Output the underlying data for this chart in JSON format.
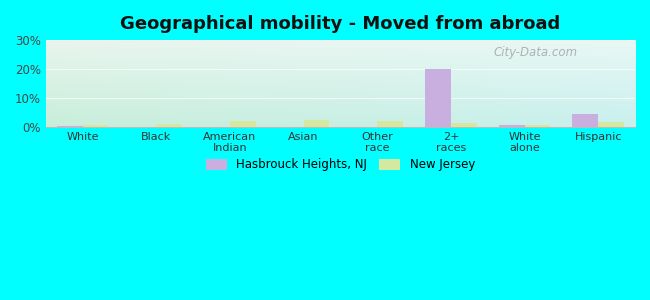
{
  "title": "Geographical mobility - Moved from abroad",
  "categories": [
    "White",
    "Black",
    "American\nIndian",
    "Asian",
    "Other\nrace",
    "2+\nraces",
    "White\nalone",
    "Hispanic"
  ],
  "hasbrouck_values": [
    0.3,
    0.0,
    0.0,
    0.0,
    0.0,
    20.0,
    0.7,
    4.5
  ],
  "nj_values": [
    0.5,
    1.0,
    2.0,
    2.5,
    2.2,
    1.5,
    0.5,
    1.8
  ],
  "hasbrouck_color": "#c9aee0",
  "nj_color": "#d4e8a0",
  "ylim": [
    0,
    30
  ],
  "yticks": [
    0,
    10,
    20,
    30
  ],
  "ytick_labels": [
    "0%",
    "10%",
    "20%",
    "30%"
  ],
  "grad_top_left": "#e8f5ee",
  "grad_top_right": "#e8f8f5",
  "grad_bottom_left": "#c8eeda",
  "grad_bottom_right": "#c8f0ee",
  "outer_background": "#00ffff",
  "title_fontsize": 13,
  "legend_label_hasbrouck": "Hasbrouck Heights, NJ",
  "legend_label_nj": "New Jersey",
  "bar_width": 0.35
}
